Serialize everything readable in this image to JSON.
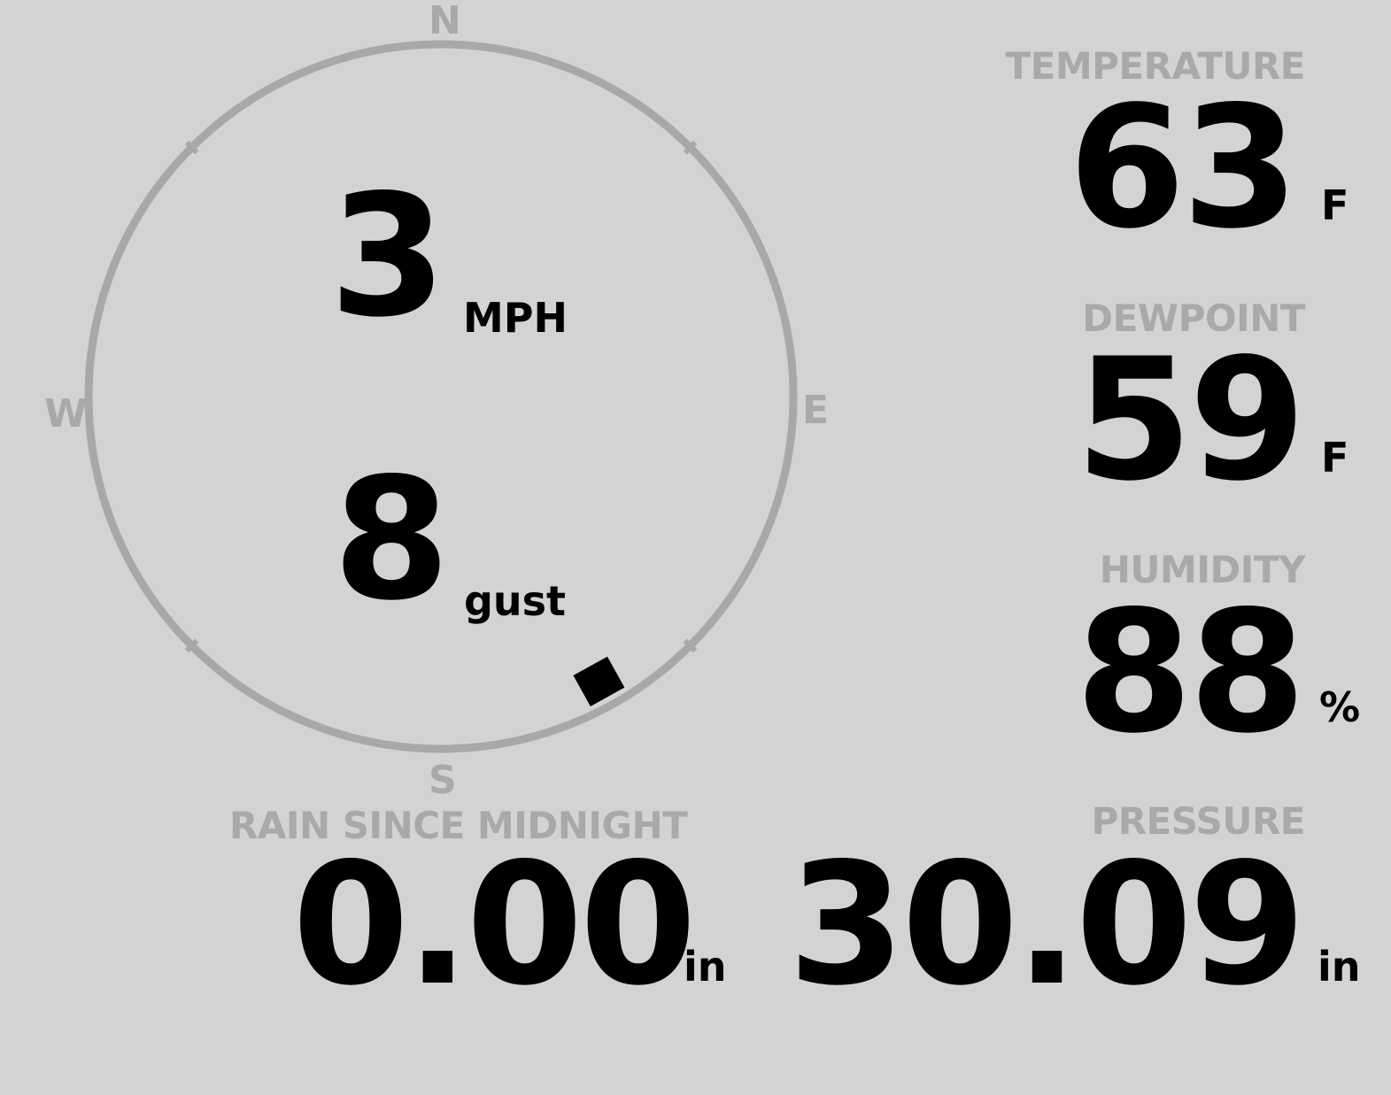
{
  "wind": {
    "speed": "3",
    "speed_unit": "MPH",
    "gust": "8",
    "gust_unit": "gust",
    "direction_deg": 151,
    "compass": {
      "n": "N",
      "e": "E",
      "s": "S",
      "w": "W"
    }
  },
  "temperature": {
    "label": "TEMPERATURE",
    "value": "63",
    "unit": "F"
  },
  "dewpoint": {
    "label": "DEWPOINT",
    "value": "59",
    "unit": "F"
  },
  "humidity": {
    "label": "HUMIDITY",
    "value": "88",
    "unit": "%"
  },
  "rain": {
    "label": "RAIN SINCE MIDNIGHT",
    "value": "0.00",
    "unit": "in"
  },
  "pressure": {
    "label": "PRESSURE",
    "value": "30.09",
    "unit": "in"
  },
  "colors": {
    "background": "#d3d3d3",
    "muted": "#a9a9a9",
    "text": "#000000"
  }
}
